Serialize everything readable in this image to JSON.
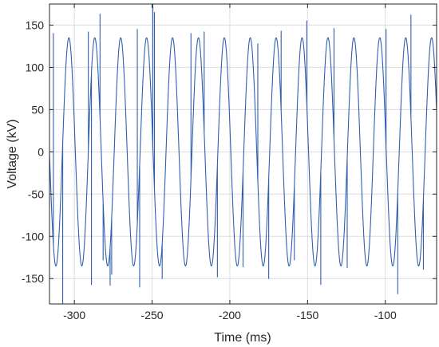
{
  "chart_data": {
    "type": "line",
    "title": "",
    "xlabel": "Time (ms)",
    "ylabel": "Voltage (kV)",
    "xlim": [
      -316,
      -67
    ],
    "ylim": [
      -180,
      175
    ],
    "xticks": [
      -300,
      -250,
      -200,
      -150,
      -100
    ],
    "xtick_labels": [
      "-300",
      "-250",
      "-200",
      "-150",
      "-100"
    ],
    "yticks": [
      -150,
      -100,
      -50,
      0,
      50,
      100,
      150
    ],
    "ytick_labels": [
      "-150",
      "-100",
      "-50",
      "0",
      "50",
      "100",
      "150"
    ],
    "grid": true,
    "series": [
      {
        "color": "#2f5faf",
        "signal": {
          "form": "sine",
          "amplitude_kv": 135,
          "frequency_hz": 60,
          "zero_crossing_ms": -307.7,
          "x_start_ms": -316,
          "x_end_ms": -67
        },
        "spikes": [
          {
            "x": -313.5,
            "y": 140
          },
          {
            "x": -307.5,
            "y": -180
          },
          {
            "x": -291.0,
            "y": 142
          },
          {
            "x": -289.0,
            "y": -157
          },
          {
            "x": -283.5,
            "y": 163
          },
          {
            "x": -281.5,
            "y": -128
          },
          {
            "x": -277.0,
            "y": -158
          },
          {
            "x": -276.0,
            "y": -145
          },
          {
            "x": -259.5,
            "y": 145
          },
          {
            "x": -258.0,
            "y": -160
          },
          {
            "x": -249.5,
            "y": 175
          },
          {
            "x": -248.5,
            "y": 165
          },
          {
            "x": -243.5,
            "y": -150
          },
          {
            "x": -225.0,
            "y": 140
          },
          {
            "x": -216.5,
            "y": 142
          },
          {
            "x": -208.0,
            "y": -148
          },
          {
            "x": -191.5,
            "y": -136
          },
          {
            "x": -182.0,
            "y": 128
          },
          {
            "x": -175.0,
            "y": -150
          },
          {
            "x": -167.0,
            "y": 143
          },
          {
            "x": -158.5,
            "y": -128
          },
          {
            "x": -150.5,
            "y": 155
          },
          {
            "x": -141.5,
            "y": -157
          },
          {
            "x": -133.0,
            "y": 146
          },
          {
            "x": -124.5,
            "y": -137
          },
          {
            "x": -99.5,
            "y": 145
          },
          {
            "x": -92.0,
            "y": -168
          },
          {
            "x": -83.5,
            "y": 162
          },
          {
            "x": -75.5,
            "y": -139
          }
        ]
      }
    ]
  },
  "colors": {
    "line": "#2f5faf",
    "grid": "#dcdcdc",
    "axes": "#262626",
    "background": "#ffffff"
  }
}
